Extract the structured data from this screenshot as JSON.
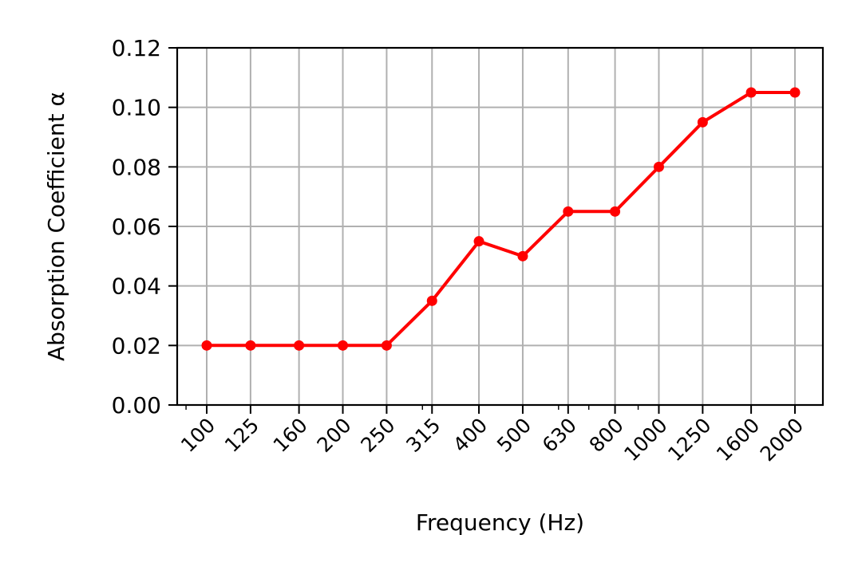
{
  "chart_data": {
    "type": "line",
    "title": "",
    "xlabel": "Frequency (Hz)",
    "ylabel": "Absorption Coefficient α",
    "x_scale": "log",
    "x": [
      100,
      125,
      160,
      200,
      250,
      315,
      400,
      500,
      630,
      800,
      1000,
      1250,
      1600,
      2000
    ],
    "x_tick_labels": [
      "100",
      "125",
      "160",
      "200",
      "250",
      "315",
      "400",
      "500",
      "630",
      "800",
      "1000",
      "1250",
      "1600",
      "2000"
    ],
    "y_tick_labels": [
      "0.00",
      "0.02",
      "0.04",
      "0.06",
      "0.08",
      "0.10",
      "0.12"
    ],
    "ylim": [
      0,
      0.12
    ],
    "grid": true,
    "series": [
      {
        "color": "#ff0000",
        "marker": "circle",
        "values": [
          0.02,
          0.02,
          0.02,
          0.02,
          0.02,
          0.035,
          0.055,
          0.05,
          0.065,
          0.065,
          0.08,
          0.095,
          0.105,
          0.105
        ]
      }
    ]
  }
}
